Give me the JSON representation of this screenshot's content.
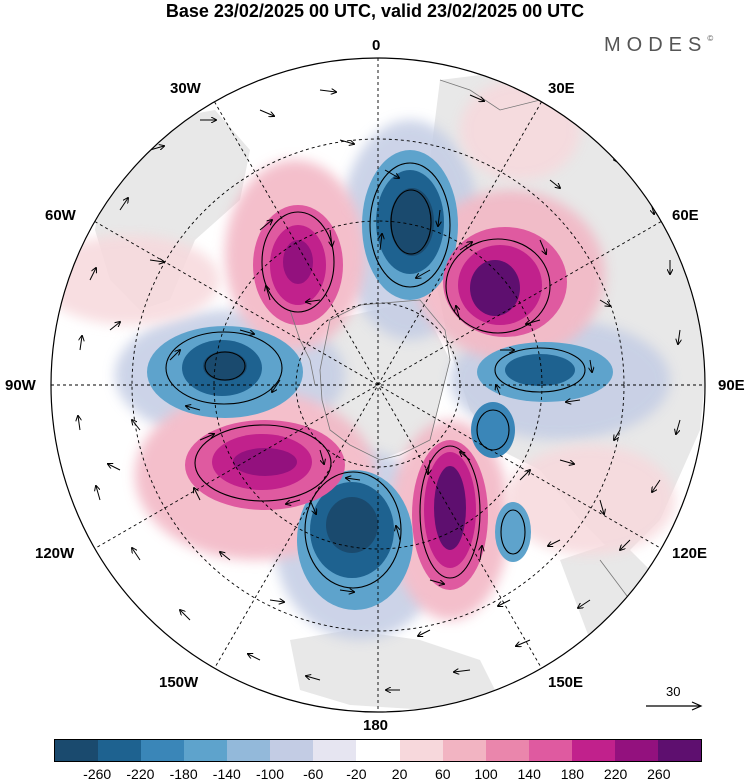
{
  "title": "Base 23/02/2025 00 UTC, valid 23/02/2025 00 UTC",
  "brand": "MODES",
  "brand_mark": "©",
  "longitude_labels": {
    "n0": "0",
    "e30": "30E",
    "e60": "60E",
    "e90": "90E",
    "e120": "120E",
    "e150": "150E",
    "s180": "180",
    "w150": "150W",
    "w120": "120W",
    "w90": "90W",
    "w60": "60W",
    "w30": "30W"
  },
  "vector_reference": "30",
  "colorbar": {
    "colors": [
      "#1a4a6e",
      "#1e6290",
      "#3a86b8",
      "#5ea3cc",
      "#93b9da",
      "#c3cce4",
      "#e6e5f1",
      "#ffffff",
      "#f7d8dc",
      "#f2b4c2",
      "#ea86ac",
      "#df5aa0",
      "#c1218c",
      "#93117e",
      "#5e0f6f"
    ],
    "ticks": [
      "-260",
      "-220",
      "-180",
      "-140",
      "-100",
      "-60",
      "-20",
      "20",
      "60",
      "100",
      "140",
      "180",
      "220",
      "260"
    ]
  },
  "anomalies": [
    {
      "value": -260,
      "color": "#1a4a6e"
    },
    {
      "value": 260,
      "color": "#5e0f6f"
    }
  ]
}
